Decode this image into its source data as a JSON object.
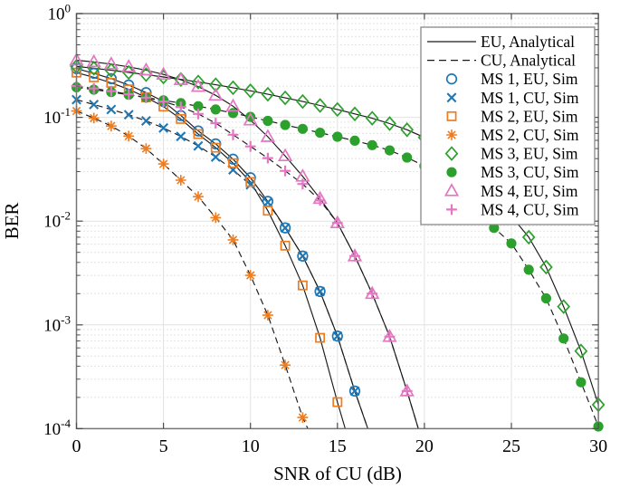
{
  "chart_data": {
    "type": "line",
    "title": "",
    "xlabel": "SNR of CU (dB)",
    "ylabel": "BER",
    "x_axis": {
      "min": 0,
      "max": 30,
      "ticks": [
        0,
        5,
        10,
        15,
        20,
        25,
        30
      ]
    },
    "y_axis": {
      "scale": "log",
      "min": 0.0001,
      "max": 1,
      "tick_exponents": [
        0,
        -1,
        -2,
        -3,
        -4
      ]
    },
    "grid": {
      "major": true,
      "minor_horizontal": "dotted"
    },
    "legend": {
      "position": "top-right-inside",
      "line_entries": [
        {
          "label": "EU, Analytical",
          "linestyle": "solid"
        },
        {
          "label": "CU, Analytical",
          "linestyle": "dashed"
        }
      ]
    },
    "analytical_line_color": "#1a1a1a",
    "series": [
      {
        "key": "ms1_eu",
        "legend_label": "MS 1, EU, Sim",
        "marker": "circle-open",
        "color": "#1f77b4",
        "linestyle": "solid",
        "x": [
          0,
          1,
          2,
          3,
          4,
          5,
          6,
          7,
          8,
          9,
          10,
          11,
          12,
          13,
          14,
          15,
          16
        ],
        "y": [
          0.295,
          0.266,
          0.236,
          0.205,
          0.173,
          0.142,
          0.104,
          0.074,
          0.0555,
          0.0395,
          0.0262,
          0.0155,
          0.0086,
          0.0046,
          0.0021,
          0.00078,
          0.00023
        ],
        "line_tail": [
          16.75,
          0.0001
        ]
      },
      {
        "key": "ms1_cu",
        "legend_label": "MS 1, CU, Sim",
        "marker": "x",
        "color": "#1f77b4",
        "linestyle": "dashed",
        "x": [
          0,
          1,
          2,
          3,
          4,
          5,
          6,
          7,
          8,
          9,
          10,
          11,
          12,
          13,
          14,
          15,
          16
        ],
        "y": [
          0.148,
          0.133,
          0.119,
          0.106,
          0.0925,
          0.079,
          0.0655,
          0.053,
          0.0415,
          0.0312,
          0.0224,
          0.0152,
          0.0086,
          0.0046,
          0.0021,
          0.00078,
          0.00023
        ],
        "line_tail": [
          16.75,
          0.0001
        ]
      },
      {
        "key": "ms2_eu",
        "legend_label": "MS 2, EU, Sim",
        "marker": "square-open",
        "color": "#ee7d21",
        "linestyle": "solid",
        "x": [
          0,
          1,
          2,
          3,
          4,
          5,
          6,
          7,
          8,
          9,
          10,
          11,
          12,
          13,
          14,
          15
        ],
        "y": [
          0.27,
          0.243,
          0.215,
          0.186,
          0.156,
          0.127,
          0.0965,
          0.069,
          0.051,
          0.0362,
          0.0238,
          0.0126,
          0.0058,
          0.0024,
          0.00075,
          0.00018
        ],
        "line_tail": [
          15.45,
          0.0001
        ]
      },
      {
        "key": "ms2_cu",
        "legend_label": "MS 2, CU, Sim",
        "marker": "asterisk",
        "color": "#ee7d21",
        "linestyle": "dashed",
        "x": [
          0,
          1,
          2,
          3,
          4,
          5,
          6,
          7,
          8,
          9,
          10,
          11,
          12,
          13
        ],
        "y": [
          0.115,
          0.0985,
          0.0825,
          0.066,
          0.05,
          0.0355,
          0.0248,
          0.0172,
          0.0108,
          0.0066,
          0.003,
          0.00124,
          0.00041,
          0.000128
        ],
        "line_tail": [
          13.3,
          0.0001
        ]
      },
      {
        "key": "ms3_eu",
        "legend_label": "MS 3, EU, Sim",
        "marker": "diamond-open",
        "color": "#2ca02c",
        "linestyle": "solid",
        "x": [
          0,
          1,
          2,
          3,
          4,
          5,
          6,
          7,
          8,
          9,
          10,
          11,
          12,
          13,
          14,
          15,
          16,
          17,
          18,
          19,
          20,
          21,
          22,
          23,
          24,
          25,
          26,
          27,
          28,
          29,
          30
        ],
        "y": [
          0.31,
          0.297,
          0.284,
          0.271,
          0.258,
          0.245,
          0.232,
          0.219,
          0.206,
          0.193,
          0.18,
          0.167,
          0.154,
          0.142,
          0.13,
          0.119,
          0.108,
          0.098,
          0.087,
          0.076,
          0.064,
          0.05,
          0.037,
          0.026,
          0.0175,
          0.0112,
          0.007,
          0.0036,
          0.0015,
          0.00056,
          0.00017
        ],
        "line_tail": null
      },
      {
        "key": "ms3_cu",
        "legend_label": "MS 3, CU, Sim",
        "marker": "circle-filled",
        "color": "#2ca02c",
        "linestyle": "dashed",
        "x": [
          0,
          1,
          2,
          3,
          4,
          5,
          6,
          7,
          8,
          9,
          10,
          11,
          12,
          13,
          14,
          15,
          16,
          17,
          18,
          19,
          20,
          21,
          22,
          23,
          24,
          25,
          26,
          27,
          28,
          29,
          30
        ],
        "y": [
          0.195,
          0.185,
          0.175,
          0.165,
          0.155,
          0.146,
          0.137,
          0.128,
          0.119,
          0.11,
          0.101,
          0.0925,
          0.0845,
          0.0775,
          0.071,
          0.065,
          0.0595,
          0.054,
          0.048,
          0.041,
          0.034,
          0.0262,
          0.0185,
          0.0122,
          0.0086,
          0.0061,
          0.0034,
          0.0018,
          0.00074,
          0.00028,
          0.000105
        ],
        "line_tail": null
      },
      {
        "key": "ms4_eu",
        "legend_label": "MS 4, EU, Sim",
        "marker": "triangle-open",
        "color": "#e377c2",
        "linestyle": "solid",
        "x": [
          0,
          1,
          2,
          3,
          4,
          5,
          6,
          7,
          8,
          9,
          10,
          11,
          12,
          13,
          14,
          15,
          16,
          17,
          18,
          19
        ],
        "y": [
          0.355,
          0.342,
          0.326,
          0.307,
          0.285,
          0.259,
          0.23,
          0.198,
          0.163,
          0.128,
          0.094,
          0.065,
          0.0425,
          0.027,
          0.0165,
          0.0096,
          0.0046,
          0.002,
          0.00077,
          0.00023
        ],
        "line_tail": [
          19.65,
          0.0001
        ]
      },
      {
        "key": "ms4_cu",
        "legend_label": "MS 4, CU, Sim",
        "marker": "plus",
        "color": "#e377c2",
        "linestyle": "dashed",
        "x": [
          0,
          1,
          2,
          3,
          4,
          5,
          6,
          7,
          8,
          9,
          10,
          11,
          12,
          13,
          14,
          15,
          16,
          17,
          18,
          19
        ],
        "y": [
          0.2,
          0.19,
          0.179,
          0.167,
          0.155,
          0.142,
          0.126,
          0.108,
          0.088,
          0.068,
          0.0525,
          0.0405,
          0.0305,
          0.0228,
          0.0158,
          0.0096,
          0.0046,
          0.002,
          0.00077,
          0.00023
        ],
        "line_tail": [
          19.65,
          0.0001
        ]
      }
    ]
  },
  "style_colors": {
    "ms1_blue": "#1f77b4",
    "ms2_orange": "#ee7d21",
    "ms3_green": "#2ca02c",
    "ms4_pink": "#e377c2",
    "analytical_line": "#1a1a1a",
    "grid_major": "#e2e2e2",
    "grid_minor": "#c9c9c9",
    "axis_spine": "#767676",
    "legend_border": "#888888"
  }
}
